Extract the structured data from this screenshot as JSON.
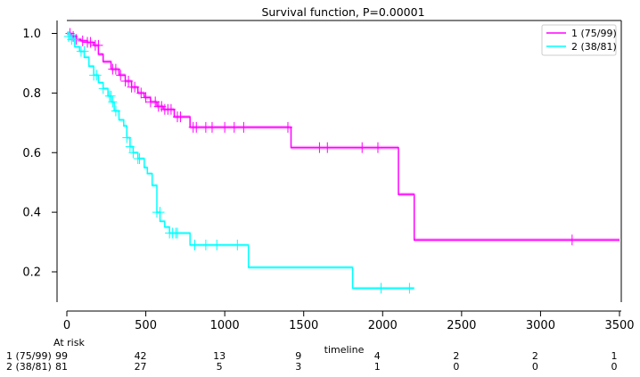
{
  "chart_data": {
    "type": "line",
    "title": "Survival function, P=0.00001",
    "xlabel": "timeline",
    "ylabel": "",
    "xlim": [
      0,
      3500
    ],
    "ylim": [
      0.1,
      1.04
    ],
    "xticks": [
      0,
      500,
      1000,
      1500,
      2000,
      2500,
      3000,
      3500
    ],
    "yticks": [
      0.2,
      0.4,
      0.6,
      0.8,
      1.0
    ],
    "ytick_labels": [
      "0.2",
      "0.4",
      "0.6",
      "0.8",
      "1.0"
    ],
    "grid": false,
    "legend_position": "top-right",
    "series": [
      {
        "name": "1 (75/99)",
        "color": "#ff00ff",
        "step_x": [
          0,
          30,
          60,
          90,
          130,
          170,
          200,
          230,
          280,
          330,
          370,
          410,
          450,
          490,
          530,
          570,
          610,
          680,
          780,
          1420,
          2100,
          2200,
          3500
        ],
        "step_y": [
          1.0,
          0.99,
          0.98,
          0.975,
          0.97,
          0.96,
          0.93,
          0.905,
          0.88,
          0.86,
          0.84,
          0.82,
          0.8,
          0.785,
          0.77,
          0.755,
          0.745,
          0.72,
          0.685,
          0.617,
          0.46,
          0.307,
          0.307
        ],
        "ci_halfwidth": 0.006,
        "censored_x": [
          20,
          40,
          60,
          100,
          130,
          150,
          180,
          200,
          290,
          310,
          340,
          370,
          390,
          410,
          430,
          470,
          500,
          530,
          560,
          580,
          600,
          620,
          640,
          660,
          700,
          720,
          800,
          820,
          880,
          920,
          1000,
          1060,
          1120,
          1400,
          1600,
          1650,
          1870,
          1970,
          3200
        ],
        "censored_y": [
          1.0,
          0.99,
          0.98,
          0.975,
          0.97,
          0.97,
          0.96,
          0.96,
          0.88,
          0.88,
          0.86,
          0.84,
          0.84,
          0.82,
          0.82,
          0.8,
          0.785,
          0.77,
          0.77,
          0.755,
          0.755,
          0.745,
          0.745,
          0.745,
          0.72,
          0.72,
          0.685,
          0.685,
          0.685,
          0.685,
          0.685,
          0.685,
          0.685,
          0.685,
          0.617,
          0.617,
          0.617,
          0.617,
          0.307
        ]
      },
      {
        "name": "2 (38/81)",
        "color": "#00ffff",
        "step_x": [
          0,
          20,
          50,
          80,
          110,
          140,
          170,
          200,
          230,
          260,
          280,
          300,
          330,
          360,
          380,
          400,
          420,
          450,
          490,
          510,
          540,
          570,
          590,
          620,
          650,
          780,
          1150,
          1810,
          2200
        ],
        "step_y": [
          1.0,
          0.98,
          0.955,
          0.94,
          0.92,
          0.89,
          0.86,
          0.835,
          0.815,
          0.79,
          0.77,
          0.74,
          0.71,
          0.69,
          0.65,
          0.62,
          0.6,
          0.58,
          0.55,
          0.53,
          0.49,
          0.4,
          0.37,
          0.35,
          0.33,
          0.29,
          0.215,
          0.145,
          0.145
        ],
        "ci_halfwidth": 0.005,
        "censored_x": [
          10,
          30,
          50,
          90,
          110,
          170,
          190,
          230,
          270,
          280,
          290,
          310,
          380,
          400,
          420,
          450,
          460,
          570,
          590,
          650,
          670,
          690,
          700,
          810,
          880,
          950,
          1080,
          1990,
          2170
        ],
        "censored_y": [
          0.99,
          0.98,
          0.98,
          0.94,
          0.94,
          0.86,
          0.86,
          0.815,
          0.79,
          0.79,
          0.77,
          0.74,
          0.65,
          0.62,
          0.6,
          0.58,
          0.58,
          0.4,
          0.4,
          0.33,
          0.33,
          0.33,
          0.33,
          0.29,
          0.29,
          0.29,
          0.29,
          0.145,
          0.145
        ]
      }
    ],
    "at_risk": {
      "header": "At risk",
      "times": [
        0,
        500,
        1000,
        1500,
        2000,
        2500,
        3000,
        3500
      ],
      "rows": [
        {
          "label": "1 (75/99)",
          "counts": [
            "99",
            "42",
            "13",
            "9",
            "4",
            "2",
            "2",
            "1"
          ]
        },
        {
          "label": "2 (38/81)",
          "counts": [
            "81",
            "27",
            "5",
            "3",
            "1",
            "0",
            "0",
            "0"
          ]
        }
      ]
    }
  }
}
